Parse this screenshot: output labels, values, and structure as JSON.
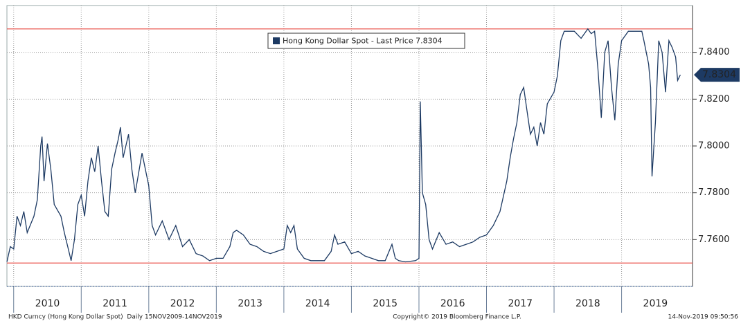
{
  "chart_data": {
    "type": "line",
    "x": [
      2009.9,
      2009.95,
      2010.0,
      2010.05,
      2010.1,
      2010.15,
      2010.2,
      2010.3,
      2010.35,
      2010.4,
      2010.42,
      2010.45,
      2010.5,
      2010.55,
      2010.6,
      2010.7,
      2010.75,
      2010.8,
      2010.85,
      2010.9,
      2010.95,
      2011.0,
      2011.05,
      2011.1,
      2011.15,
      2011.2,
      2011.25,
      2011.3,
      2011.35,
      2011.4,
      2011.45,
      2011.5,
      2011.55,
      2011.58,
      2011.62,
      2011.7,
      2011.75,
      2011.8,
      2011.9,
      2012.0,
      2012.05,
      2012.1,
      2012.2,
      2012.3,
      2012.4,
      2012.5,
      2012.6,
      2012.7,
      2012.8,
      2012.9,
      2013.0,
      2013.1,
      2013.2,
      2013.25,
      2013.3,
      2013.4,
      2013.5,
      2013.6,
      2013.7,
      2013.8,
      2013.9,
      2014.0,
      2014.05,
      2014.1,
      2014.15,
      2014.2,
      2014.3,
      2014.4,
      2014.5,
      2014.6,
      2014.7,
      2014.75,
      2014.8,
      2014.9,
      2015.0,
      2015.1,
      2015.2,
      2015.3,
      2015.4,
      2015.5,
      2015.6,
      2015.65,
      2015.7,
      2015.8,
      2015.95,
      2016.0,
      2016.02,
      2016.05,
      2016.1,
      2016.15,
      2016.2,
      2016.3,
      2016.4,
      2016.5,
      2016.6,
      2016.7,
      2016.8,
      2016.9,
      2017.0,
      2017.1,
      2017.2,
      2017.3,
      2017.35,
      2017.4,
      2017.45,
      2017.5,
      2017.55,
      2017.6,
      2017.65,
      2017.7,
      2017.75,
      2017.8,
      2017.85,
      2017.9,
      2018.0,
      2018.05,
      2018.1,
      2018.15,
      2018.3,
      2018.4,
      2018.5,
      2018.55,
      2018.6,
      2018.65,
      2018.7,
      2018.75,
      2018.8,
      2018.85,
      2018.9,
      2018.95,
      2019.0,
      2019.1,
      2019.2,
      2019.3,
      2019.33,
      2019.4,
      2019.43,
      2019.45,
      2019.5,
      2019.55,
      2019.6,
      2019.65,
      2019.7,
      2019.75,
      2019.8,
      2019.83,
      2019.87
    ],
    "series": [
      {
        "name": "Hong Kong Dollar Spot - Last Price 7.8304",
        "color": "#1d3a63",
        "values": [
          7.7505,
          7.757,
          7.756,
          7.77,
          7.766,
          7.772,
          7.763,
          7.77,
          7.777,
          7.8,
          7.804,
          7.785,
          7.801,
          7.79,
          7.775,
          7.77,
          7.763,
          7.757,
          7.751,
          7.76,
          7.775,
          7.779,
          7.77,
          7.785,
          7.795,
          7.789,
          7.8,
          7.785,
          7.772,
          7.77,
          7.79,
          7.797,
          7.803,
          7.808,
          7.795,
          7.805,
          7.79,
          7.78,
          7.797,
          7.783,
          7.766,
          7.762,
          7.768,
          7.76,
          7.766,
          7.757,
          7.76,
          7.754,
          7.753,
          7.751,
          7.752,
          7.752,
          7.757,
          7.763,
          7.764,
          7.762,
          7.758,
          7.757,
          7.755,
          7.754,
          7.755,
          7.756,
          7.766,
          7.763,
          7.766,
          7.756,
          7.752,
          7.751,
          7.751,
          7.751,
          7.755,
          7.762,
          7.758,
          7.759,
          7.754,
          7.755,
          7.753,
          7.752,
          7.751,
          7.751,
          7.758,
          7.752,
          7.751,
          7.7505,
          7.751,
          7.752,
          7.819,
          7.78,
          7.775,
          7.76,
          7.756,
          7.763,
          7.758,
          7.759,
          7.757,
          7.758,
          7.759,
          7.761,
          7.762,
          7.766,
          7.772,
          7.785,
          7.795,
          7.803,
          7.81,
          7.822,
          7.825,
          7.815,
          7.805,
          7.808,
          7.8,
          7.81,
          7.805,
          7.818,
          7.823,
          7.83,
          7.845,
          7.849,
          7.849,
          7.846,
          7.85,
          7.848,
          7.849,
          7.833,
          7.812,
          7.84,
          7.845,
          7.825,
          7.811,
          7.835,
          7.845,
          7.849,
          7.849,
          7.849,
          7.845,
          7.835,
          7.825,
          7.787,
          7.81,
          7.845,
          7.84,
          7.823,
          7.845,
          7.842,
          7.838,
          7.828,
          7.8304
        ]
      }
    ],
    "xlim": [
      2009.9,
      2020.05
    ],
    "xticks": [
      2010,
      2011,
      2012,
      2013,
      2014,
      2015,
      2016,
      2017,
      2018,
      2019
    ],
    "ylim": [
      7.74,
      7.86
    ],
    "yticks": [
      {
        "value": 7.76,
        "label": "7.7600"
      },
      {
        "value": 7.78,
        "label": "7.7800"
      },
      {
        "value": 7.8,
        "label": "7.8000"
      },
      {
        "value": 7.82,
        "label": "7.8200"
      },
      {
        "value": 7.84,
        "label": "7.8400"
      }
    ],
    "reference_lines": [
      7.75,
      7.85
    ],
    "grid": true,
    "footer_left": "HKD Curncy (Hong Kong Dollar Spot)  Daily 15NOV2009-14NOV2019",
    "footer_center": "Copyright© 2019 Bloomberg Finance L.P.",
    "footer_right": "14-Nov-2019 09:50:56"
  }
}
